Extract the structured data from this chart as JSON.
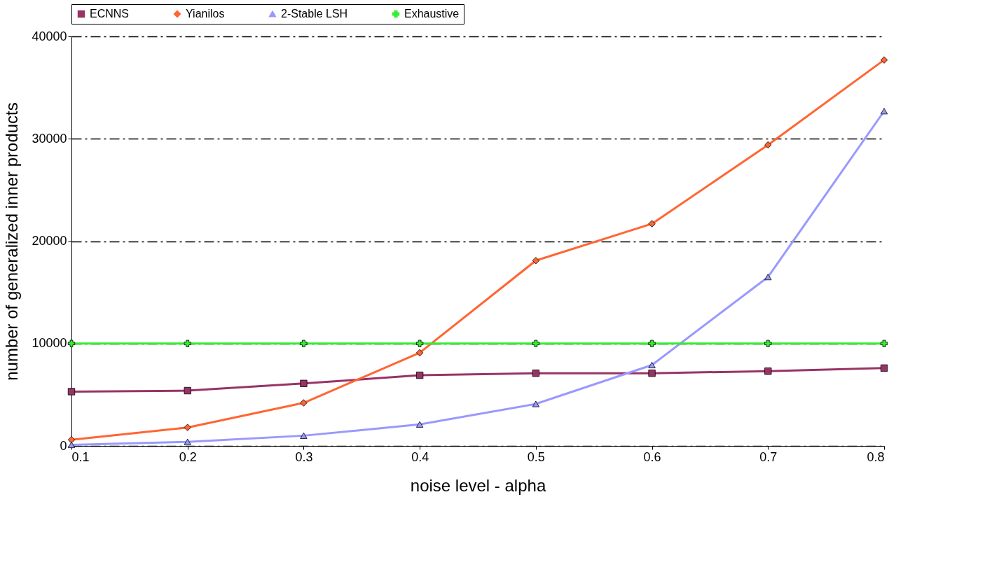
{
  "chart_data": {
    "type": "line",
    "xlabel": "noise level - alpha",
    "ylabel": "number of generalized inner products",
    "x": [
      0.1,
      0.2,
      0.3,
      0.4,
      0.5,
      0.6,
      0.7,
      0.8
    ],
    "xlim": [
      0.1,
      0.8
    ],
    "xticks": [
      0.1,
      0.2,
      0.3,
      0.4,
      0.5,
      0.6,
      0.7,
      0.8
    ],
    "ylim": [
      0,
      40000
    ],
    "yticks": [
      0,
      10000,
      20000,
      30000,
      40000
    ],
    "grid": "y",
    "legend": "top",
    "line_style": "solid",
    "series": [
      {
        "name": "ECNNS",
        "color": "#993366",
        "marker": "square",
        "values": [
          5300,
          5400,
          6100,
          6900,
          7100,
          7100,
          7300,
          7600
        ]
      },
      {
        "name": "Yianilos",
        "color": "#ff6633",
        "marker": "diamond",
        "values": [
          600,
          1800,
          4200,
          9100,
          18100,
          21700,
          29400,
          37700
        ]
      },
      {
        "name": "2-Stable LSH",
        "color": "#9999ff",
        "marker": "triangle",
        "values": [
          100,
          400,
          1000,
          2100,
          4100,
          7900,
          16500,
          32700
        ]
      },
      {
        "name": "Exhaustive",
        "color": "#33ee33",
        "marker": "cross",
        "values": [
          10000,
          10000,
          10000,
          10000,
          10000,
          10000,
          10000,
          10000
        ]
      }
    ]
  }
}
